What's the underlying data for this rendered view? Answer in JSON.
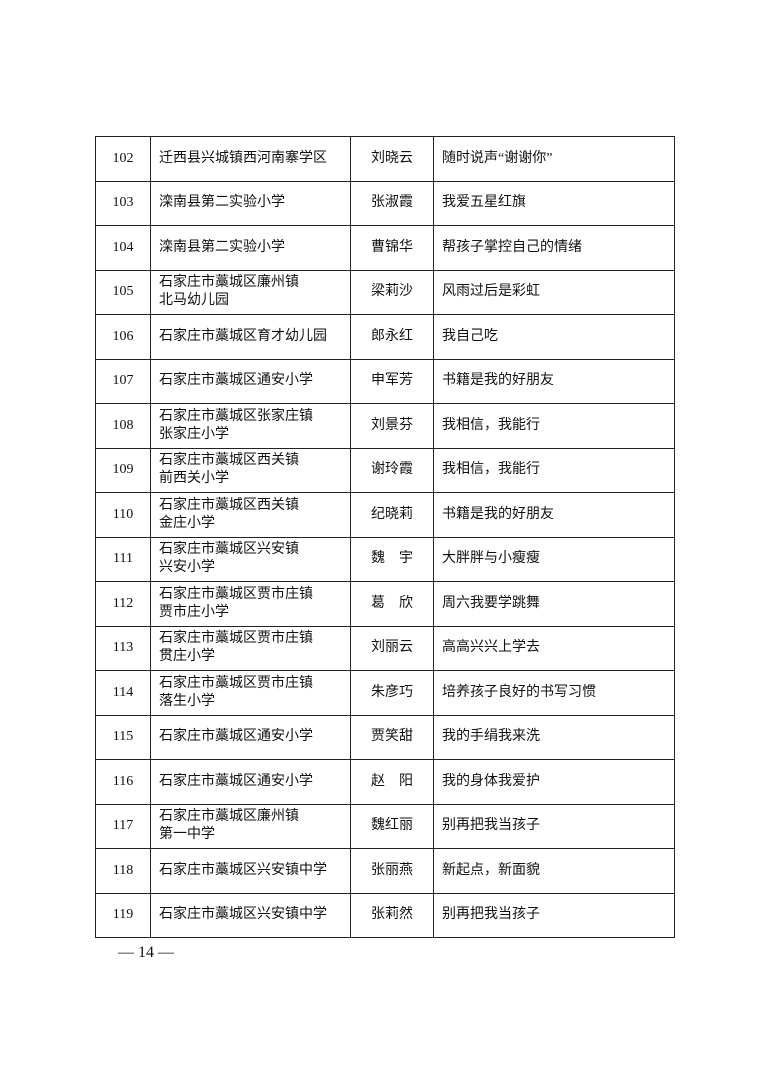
{
  "table": {
    "rows": [
      [
        "102",
        "迁西县兴城镇西河南寨学区",
        "刘晓云",
        "随时说声“谢谢你”"
      ],
      [
        "103",
        "滦南县第二实验小学",
        "张淑霞",
        "我爱五星红旗"
      ],
      [
        "104",
        "滦南县第二实验小学",
        "曹锦华",
        "帮孩子掌控自己的情绪"
      ],
      [
        "105",
        "石家庄市藁城区廉州镇\n北马幼儿园",
        "梁莉沙",
        "风雨过后是彩虹"
      ],
      [
        "106",
        "石家庄市藁城区育才幼儿园",
        "郎永红",
        "我自己吃"
      ],
      [
        "107",
        "石家庄市藁城区通安小学",
        "申军芳",
        "书籍是我的好朋友"
      ],
      [
        "108",
        "石家庄市藁城区张家庄镇\n张家庄小学",
        "刘景芬",
        "我相信，我能行"
      ],
      [
        "109",
        "石家庄市藁城区西关镇\n前西关小学",
        "谢玲霞",
        "我相信，我能行"
      ],
      [
        "110",
        "石家庄市藁城区西关镇\n金庄小学",
        "纪晓莉",
        "书籍是我的好朋友"
      ],
      [
        "111",
        "石家庄市藁城区兴安镇\n兴安小学",
        "魏　宇",
        "大胖胖与小瘦瘦"
      ],
      [
        "112",
        "石家庄市藁城区贾市庄镇\n贾市庄小学",
        "葛　欣",
        "周六我要学跳舞"
      ],
      [
        "113",
        "石家庄市藁城区贾市庄镇\n贯庄小学",
        "刘丽云",
        "高高兴兴上学去"
      ],
      [
        "114",
        "石家庄市藁城区贾市庄镇\n落生小学",
        "朱彦巧",
        "培养孩子良好的书写习惯"
      ],
      [
        "115",
        "石家庄市藁城区通安小学",
        "贾笑甜",
        "我的手绢我来洗"
      ],
      [
        "116",
        "石家庄市藁城区通安小学",
        "赵　阳",
        "我的身体我爱护"
      ],
      [
        "117",
        "石家庄市藁城区廉州镇\n第一中学",
        "魏红丽",
        "别再把我当孩子"
      ],
      [
        "118",
        "石家庄市藁城区兴安镇中学",
        "张丽燕",
        "新起点，新面貌"
      ],
      [
        "119",
        "石家庄市藁城区兴安镇中学",
        "张莉然",
        "别再把我当孩子"
      ]
    ]
  },
  "footer": {
    "page_number": "— 14 —"
  }
}
